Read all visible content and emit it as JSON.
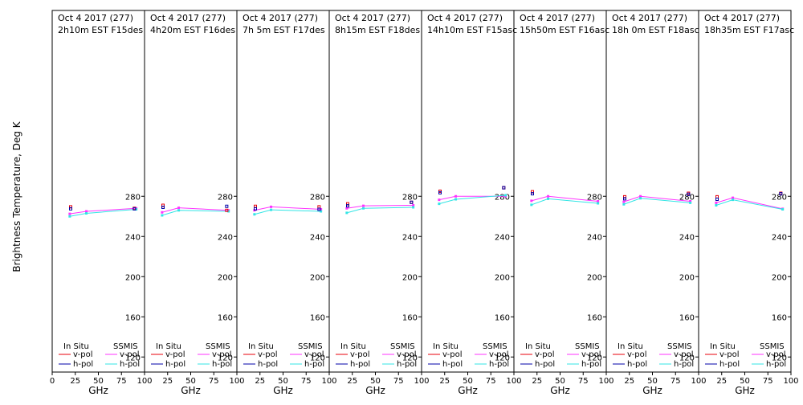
{
  "figure": {
    "ylabel": "Brightness Temperature, Deg K",
    "xlabel": "GHz"
  },
  "chart_data": {
    "type": "line",
    "ylim": [
      105,
      465
    ],
    "xlim": [
      0,
      100
    ],
    "yticks": [
      120,
      160,
      200,
      240,
      280
    ],
    "xticks": [
      0,
      25,
      50,
      75,
      100
    ],
    "grid": false,
    "legend_placement": "bottom",
    "legend": {
      "group_labels": [
        "In Situ",
        "SSMIS"
      ],
      "entries": [
        "v-pol",
        "h-pol",
        "v-pol",
        "h-pol"
      ],
      "colors": {
        "insitu_v": "#e8000b",
        "insitu_h": "#0000a8",
        "ssmis_v": "#ff33ff",
        "ssmis_h": "#33e5e5"
      }
    },
    "panels": [
      {
        "title_line1": "Oct 4 2017 (277)",
        "title_line2": "2h10m  EST  F15des",
        "insitu_v": [
          {
            "x": 20,
            "y": 269.5
          },
          {
            "x": 89,
            "y": 268.0
          }
        ],
        "insitu_h": [
          {
            "x": 20,
            "y": 267.5
          },
          {
            "x": 89,
            "y": 267.5
          }
        ],
        "ssmis_v": [
          {
            "x": 19,
            "y": 262.5
          },
          {
            "x": 37,
            "y": 265.0
          },
          {
            "x": 91,
            "y": 268.0
          }
        ],
        "ssmis_h": [
          {
            "x": 19,
            "y": 260.0
          },
          {
            "x": 37,
            "y": 263.0
          },
          {
            "x": 91,
            "y": 267.0
          }
        ]
      },
      {
        "title_line1": "Oct 4 2017 (277)",
        "title_line2": "4h20m  EST  F16des",
        "insitu_v": [
          {
            "x": 20,
            "y": 271.0
          },
          {
            "x": 89,
            "y": 266.0
          }
        ],
        "insitu_h": [
          {
            "x": 20,
            "y": 269.0
          },
          {
            "x": 89,
            "y": 270.0
          }
        ],
        "ssmis_v": [
          {
            "x": 19,
            "y": 264.0
          },
          {
            "x": 37,
            "y": 268.5
          },
          {
            "x": 91,
            "y": 266.0
          }
        ],
        "ssmis_h": [
          {
            "x": 19,
            "y": 261.0
          },
          {
            "x": 37,
            "y": 266.0
          },
          {
            "x": 91,
            "y": 265.0
          }
        ]
      },
      {
        "title_line1": "Oct 4 2017 (277)",
        "title_line2": "7h 5m  EST  F17des",
        "insitu_v": [
          {
            "x": 20,
            "y": 270.0
          },
          {
            "x": 89,
            "y": 269.5
          }
        ],
        "insitu_h": [
          {
            "x": 20,
            "y": 267.5
          },
          {
            "x": 89,
            "y": 267.0
          }
        ],
        "ssmis_v": [
          {
            "x": 19,
            "y": 266.0
          },
          {
            "x": 37,
            "y": 269.5
          },
          {
            "x": 91,
            "y": 267.0
          }
        ],
        "ssmis_h": [
          {
            "x": 19,
            "y": 262.0
          },
          {
            "x": 37,
            "y": 266.5
          },
          {
            "x": 91,
            "y": 265.0
          }
        ]
      },
      {
        "title_line1": "Oct 4 2017 (277)",
        "title_line2": "8h15m  EST  F18des",
        "insitu_v": [
          {
            "x": 20,
            "y": 272.5
          },
          {
            "x": 89,
            "y": 274.0
          }
        ],
        "insitu_h": [
          {
            "x": 20,
            "y": 270.5
          },
          {
            "x": 89,
            "y": 274.0
          }
        ],
        "ssmis_v": [
          {
            "x": 19,
            "y": 268.0
          },
          {
            "x": 37,
            "y": 270.5
          },
          {
            "x": 91,
            "y": 271.0
          }
        ],
        "ssmis_h": [
          {
            "x": 19,
            "y": 263.5
          },
          {
            "x": 37,
            "y": 268.0
          },
          {
            "x": 91,
            "y": 269.0
          }
        ]
      },
      {
        "title_line1": "Oct 4 2017 (277)",
        "title_line2": "14h10m  EST  F15asc",
        "insitu_v": [
          {
            "x": 20,
            "y": 285.0
          },
          {
            "x": 89,
            "y": 288.5
          }
        ],
        "insitu_h": [
          {
            "x": 20,
            "y": 283.5
          },
          {
            "x": 89,
            "y": 288.5
          }
        ],
        "ssmis_v": [
          {
            "x": 19,
            "y": 276.5
          },
          {
            "x": 37,
            "y": 280.0
          },
          {
            "x": 91,
            "y": 280.0
          }
        ],
        "ssmis_h": [
          {
            "x": 19,
            "y": 272.5
          },
          {
            "x": 37,
            "y": 277.0
          },
          {
            "x": 91,
            "y": 281.0
          }
        ]
      },
      {
        "title_line1": "Oct 4 2017 (277)",
        "title_line2": "15h50m  EST  F16asc",
        "insitu_v": [
          {
            "x": 20,
            "y": 284.5
          }
        ],
        "insitu_h": [
          {
            "x": 20,
            "y": 282.5
          }
        ],
        "ssmis_v": [
          {
            "x": 19,
            "y": 275.5
          },
          {
            "x": 37,
            "y": 280.0
          },
          {
            "x": 91,
            "y": 275.0
          }
        ],
        "ssmis_h": [
          {
            "x": 19,
            "y": 271.5
          },
          {
            "x": 37,
            "y": 277.5
          },
          {
            "x": 91,
            "y": 273.0
          }
        ]
      },
      {
        "title_line1": "Oct 4 2017 (277)",
        "title_line2": "18h 0m  EST  F18asc",
        "insitu_v": [
          {
            "x": 20,
            "y": 279.5
          },
          {
            "x": 89,
            "y": 283.0
          }
        ],
        "insitu_h": [
          {
            "x": 20,
            "y": 277.5
          },
          {
            "x": 89,
            "y": 282.0
          }
        ],
        "ssmis_v": [
          {
            "x": 19,
            "y": 274.5
          },
          {
            "x": 37,
            "y": 280.0
          },
          {
            "x": 91,
            "y": 275.0
          }
        ],
        "ssmis_h": [
          {
            "x": 19,
            "y": 272.0
          },
          {
            "x": 37,
            "y": 278.0
          },
          {
            "x": 91,
            "y": 273.5
          }
        ]
      },
      {
        "title_line1": "Oct 4 2017 (277)",
        "title_line2": "18h35m  EST  F17asc",
        "insitu_v": [
          {
            "x": 20,
            "y": 279.5
          },
          {
            "x": 89,
            "y": 283.0
          }
        ],
        "insitu_h": [
          {
            "x": 20,
            "y": 277.0
          },
          {
            "x": 89,
            "y": 282.5
          }
        ],
        "ssmis_v": [
          {
            "x": 19,
            "y": 273.5
          },
          {
            "x": 37,
            "y": 278.5
          },
          {
            "x": 91,
            "y": 267.5
          }
        ],
        "ssmis_h": [
          {
            "x": 19,
            "y": 271.0
          },
          {
            "x": 37,
            "y": 276.5
          },
          {
            "x": 91,
            "y": 267.0
          }
        ]
      }
    ]
  }
}
